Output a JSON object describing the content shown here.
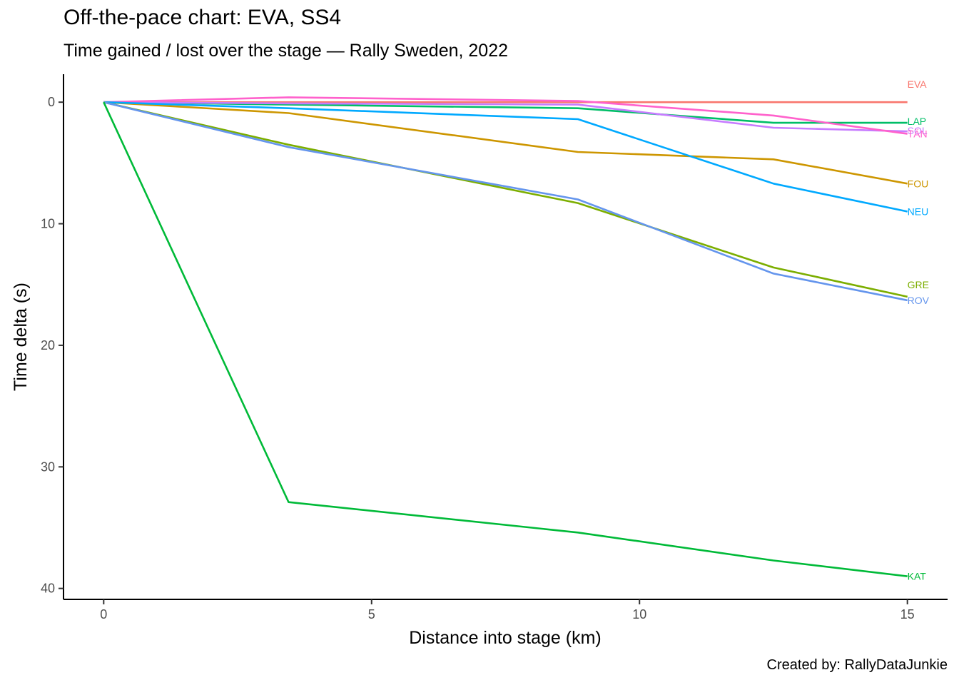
{
  "chart_data": {
    "type": "line",
    "title": "Off-the-pace chart: EVA, SS4",
    "subtitle": "Time gained / lost over the stage — Rally Sweden, 2022",
    "caption": "Created by: RallyDataJunkie",
    "xlabel": "Distance into stage (km)",
    "ylabel": "Time delta (s)",
    "xlim": [
      -0.75,
      15.75
    ],
    "ylim": [
      -2.3,
      40.9
    ],
    "y_reversed": true,
    "xticks": [
      0,
      5,
      10,
      15
    ],
    "yticks": [
      0,
      10,
      20,
      30,
      40
    ],
    "grid": false,
    "legend": "direct labels at line ends",
    "series": [
      {
        "name": "EVA",
        "color": "#F8766D",
        "x": [
          0,
          3.45,
          8.85,
          12.5,
          15
        ],
        "y": [
          0,
          0,
          0,
          0,
          0
        ]
      },
      {
        "name": "LAP",
        "color": "#00BE67",
        "x": [
          0,
          3.45,
          8.85,
          12.5,
          15
        ],
        "y": [
          0,
          0.2,
          0.5,
          1.7,
          1.7
        ]
      },
      {
        "name": "SOL",
        "color": "#C77CFF",
        "x": [
          0,
          3.45,
          8.85,
          12.5,
          15
        ],
        "y": [
          0,
          0.1,
          0.2,
          2.1,
          2.4
        ]
      },
      {
        "name": "TÄN",
        "color": "#FF61CC",
        "x": [
          0,
          3.45,
          8.85,
          12.5,
          15
        ],
        "y": [
          0,
          -0.4,
          -0.1,
          1.1,
          2.6
        ]
      },
      {
        "name": "FOU",
        "color": "#CD9600",
        "x": [
          0,
          3.45,
          8.85,
          12.5,
          15
        ],
        "y": [
          0,
          0.9,
          4.1,
          4.7,
          6.7
        ]
      },
      {
        "name": "NEU",
        "color": "#00A9FF",
        "x": [
          0,
          3.45,
          8.85,
          12.5,
          15
        ],
        "y": [
          0,
          0.5,
          1.4,
          6.7,
          9.0
        ]
      },
      {
        "name": "GRE",
        "color": "#7CAE00",
        "x": [
          0,
          3.45,
          8.85,
          12.5,
          15
        ],
        "y": [
          0,
          3.5,
          8.3,
          13.6,
          16.0
        ]
      },
      {
        "name": "ROV",
        "color": "#6495ED",
        "x": [
          0,
          3.45,
          8.85,
          12.5,
          15
        ],
        "y": [
          0,
          3.7,
          8.0,
          14.1,
          16.3
        ]
      },
      {
        "name": "KAT",
        "color": "#00BA38",
        "x": [
          0,
          3.45,
          8.85,
          12.5,
          15
        ],
        "y": [
          0,
          32.9,
          35.4,
          37.7,
          39.0
        ]
      }
    ]
  }
}
